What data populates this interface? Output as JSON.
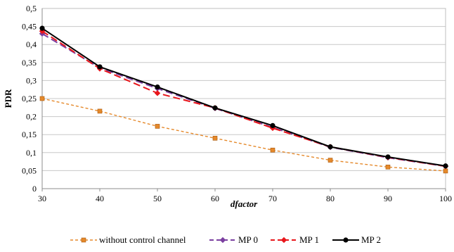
{
  "chart_data": {
    "type": "line",
    "title": "",
    "xlabel": "dfactor",
    "ylabel": "PDR",
    "x": [
      30,
      40,
      50,
      60,
      70,
      80,
      90,
      100
    ],
    "x_ticks": [
      "30",
      "40",
      "50",
      "60",
      "70",
      "80",
      "90",
      "100"
    ],
    "y_ticks": [
      "0",
      "0,05",
      "0,1",
      "0,15",
      "0,2",
      "0,25",
      "0,3",
      "0,35",
      "0,4",
      "0,45",
      "0,5"
    ],
    "xlim": [
      30,
      100
    ],
    "ylim": [
      0,
      0.5
    ],
    "grid": "horizontal",
    "legend_position": "bottom",
    "series": [
      {
        "name": "without control channel",
        "color": "#E5892B",
        "line_style": "dashed",
        "marker": "square",
        "values": [
          0.25,
          0.215,
          0.173,
          0.14,
          0.107,
          0.079,
          0.06,
          0.049
        ]
      },
      {
        "name": "MP 0",
        "color": "#7B3FA0",
        "line_style": "dashed",
        "marker": "diamond",
        "values": [
          0.43,
          0.335,
          0.278,
          0.223,
          0.17,
          0.115,
          0.086,
          0.062
        ]
      },
      {
        "name": "MP 1",
        "color": "#E8161B",
        "line_style": "dashed",
        "marker": "diamond",
        "values": [
          0.437,
          0.333,
          0.265,
          0.224,
          0.168,
          0.116,
          0.087,
          0.062
        ]
      },
      {
        "name": "MP 2",
        "color": "#000000",
        "line_style": "solid",
        "marker": "circle",
        "values": [
          0.445,
          0.338,
          0.282,
          0.224,
          0.175,
          0.116,
          0.088,
          0.063
        ]
      }
    ]
  }
}
